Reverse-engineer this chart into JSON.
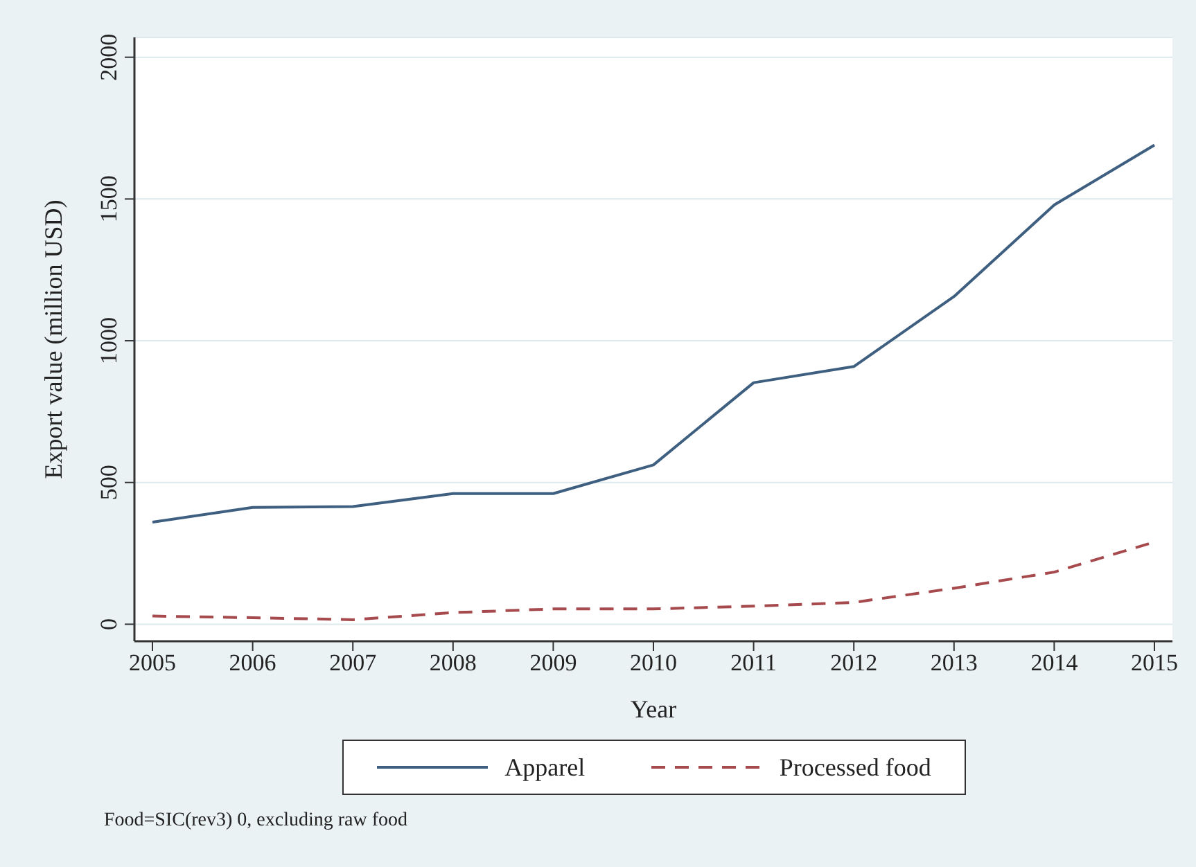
{
  "chart_data": {
    "type": "line",
    "xlabel": "Year",
    "ylabel": "Export value (million USD)",
    "x": [
      2005,
      2006,
      2007,
      2008,
      2009,
      2010,
      2011,
      2012,
      2013,
      2014,
      2015
    ],
    "series": [
      {
        "name": "Apparel",
        "color": "#3e5f80",
        "line_style": "solid",
        "values": [
          360,
          412,
          415,
          461,
          461,
          562,
          852,
          909,
          1156,
          1479,
          1690
        ]
      },
      {
        "name": "Processed food",
        "color": "#a64a4e",
        "line_style": "dashed",
        "values": [
          29,
          23,
          16,
          41,
          54,
          54,
          64,
          77,
          127,
          184,
          290
        ]
      }
    ],
    "xlim": [
      2004.82,
      2015.18
    ],
    "xticks": [
      2005,
      2006,
      2007,
      2008,
      2009,
      2010,
      2011,
      2012,
      2013,
      2014,
      2015
    ],
    "ylim": [
      -60,
      2070
    ],
    "yticks": [
      0,
      500,
      1000,
      1500,
      2000
    ],
    "grid": "y",
    "legend": "bottom",
    "marker": "none",
    "annotations": [
      "Food=SIC(rev3) 0, excluding raw food"
    ]
  }
}
